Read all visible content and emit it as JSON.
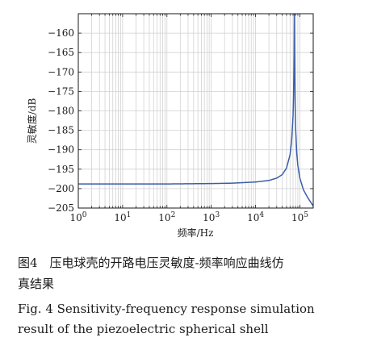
{
  "chart_data": {
    "type": "line",
    "title": "",
    "xlabel": "频率/Hz",
    "ylabel": "灵敏度/dB",
    "xscale": "log",
    "xlim": [
      1,
      200000
    ],
    "ylim": [
      -205,
      -155
    ],
    "grid": true,
    "xticks": [
      {
        "value": 1,
        "base": "10",
        "exp": "0"
      },
      {
        "value": 10,
        "base": "10",
        "exp": "1"
      },
      {
        "value": 100,
        "base": "10",
        "exp": "2"
      },
      {
        "value": 1000,
        "base": "10",
        "exp": "3"
      },
      {
        "value": 10000,
        "base": "10",
        "exp": "4"
      },
      {
        "value": 100000,
        "base": "10",
        "exp": "5"
      }
    ],
    "yticks": [
      {
        "value": -160,
        "label": "−160"
      },
      {
        "value": -165,
        "label": "−165"
      },
      {
        "value": -170,
        "label": "−170"
      },
      {
        "value": -175,
        "label": "−175"
      },
      {
        "value": -180,
        "label": "−180"
      },
      {
        "value": -185,
        "label": "−185"
      },
      {
        "value": -190,
        "label": "−190"
      },
      {
        "value": -195,
        "label": "−195"
      },
      {
        "value": -200,
        "label": "−200"
      },
      {
        "value": -205,
        "label": "−205"
      }
    ],
    "series": [
      {
        "color": "#3a5ea8",
        "x": [
          1,
          10,
          100,
          1000,
          3000,
          10000,
          20000,
          30000,
          40000,
          50000,
          60000,
          65000,
          70000,
          72000,
          74000,
          75000,
          76000,
          78000,
          80000,
          85000,
          90000,
          100000,
          120000,
          150000,
          200000
        ],
        "y": [
          -198.8,
          -198.8,
          -198.8,
          -198.7,
          -198.6,
          -198.3,
          -197.9,
          -197.3,
          -196.4,
          -194.7,
          -191.3,
          -187.8,
          -181.5,
          -176.0,
          -166.0,
          -154.0,
          -164.5,
          -178.0,
          -184.3,
          -190.9,
          -194.1,
          -197.3,
          -200.3,
          -202.3,
          -204.5
        ]
      }
    ]
  },
  "caption": {
    "cn_line1": "图4　压电球壳的开路电压灵敏度-频率响应曲线仿",
    "cn_line2": "真结果",
    "en_line1": "Fig. 4  Sensitivity-frequency response simulation",
    "en_line2": "result of the piezoelectric spherical shell"
  }
}
